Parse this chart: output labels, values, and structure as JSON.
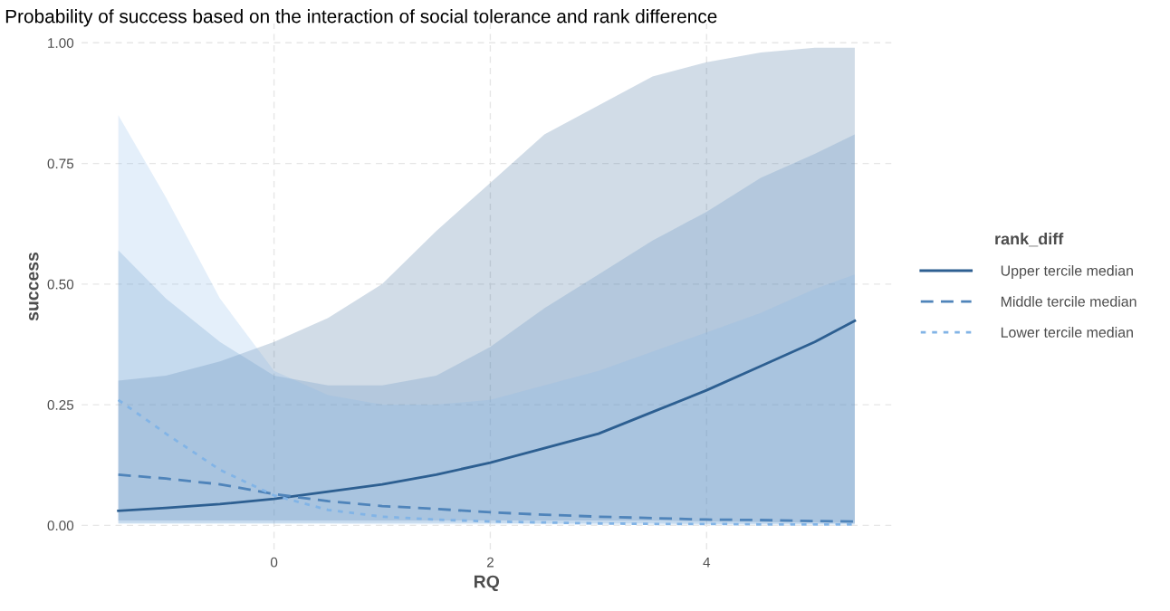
{
  "chart_data": {
    "type": "line",
    "title": "Probability of success based on the interaction of social tolerance and rank difference",
    "xlabel": "RQ",
    "ylabel": "success",
    "legend_title": "rank_diff",
    "legend": "right",
    "grid": true,
    "xlim": [
      -1.78,
      5.71
    ],
    "xticks": [
      0,
      2,
      4
    ],
    "ylim": [
      -0.05,
      1.04
    ],
    "yticks": [
      {
        "value": 0,
        "label": "0.00"
      },
      {
        "value": 0.25,
        "label": "0.25"
      },
      {
        "value": 0.5,
        "label": "0.50"
      },
      {
        "value": 0.75,
        "label": "0.75"
      },
      {
        "value": 1,
        "label": "1.00"
      }
    ],
    "x": [
      -1.44,
      -1,
      -0.5,
      0,
      0.5,
      1,
      1.5,
      2,
      2.5,
      3,
      3.5,
      4,
      4.5,
      5,
      5.37
    ],
    "series": [
      {
        "name": "Upper tercile median",
        "color": "#2d5f91",
        "line_style": "solid",
        "values": [
          0.03,
          0.036,
          0.044,
          0.055,
          0.07,
          0.085,
          0.105,
          0.13,
          0.16,
          0.19,
          0.235,
          0.28,
          0.33,
          0.38,
          0.424
        ],
        "lower": [
          0.01,
          0.01,
          0.01,
          0.01,
          0.01,
          0.01,
          0.01,
          0.01,
          0.01,
          0.01,
          0.01,
          0.008,
          0.007,
          0.006,
          0.005
        ],
        "upper": [
          0.3,
          0.31,
          0.34,
          0.38,
          0.43,
          0.5,
          0.61,
          0.71,
          0.81,
          0.87,
          0.93,
          0.96,
          0.98,
          0.99,
          0.99
        ]
      },
      {
        "name": "Middle tercile median",
        "color": "#4f84ba",
        "line_style": "dashed",
        "values": [
          0.105,
          0.097,
          0.085,
          0.065,
          0.05,
          0.04,
          0.034,
          0.027,
          0.022,
          0.018,
          0.015,
          0.012,
          0.011,
          0.009,
          0.008
        ],
        "lower": [
          0.005,
          0.005,
          0.005,
          0.005,
          0.005,
          0.005,
          0.005,
          0.005,
          0.004,
          0.004,
          0.004,
          0.003,
          0.003,
          0.003,
          0.003
        ],
        "upper": [
          0.57,
          0.47,
          0.38,
          0.31,
          0.29,
          0.29,
          0.31,
          0.37,
          0.45,
          0.52,
          0.59,
          0.65,
          0.72,
          0.77,
          0.81
        ]
      },
      {
        "name": "Lower tercile median",
        "color": "#82b4e6",
        "line_style": "dotted",
        "values": [
          0.26,
          0.19,
          0.115,
          0.062,
          0.032,
          0.018,
          0.012,
          0.008,
          0.006,
          0.004,
          0.003,
          0.003,
          0.002,
          0.002,
          0.002
        ],
        "lower": [
          0.003,
          0.003,
          0.003,
          0.003,
          0.003,
          0.002,
          0.002,
          0.002,
          0.002,
          0.001,
          0.001,
          0.001,
          0.001,
          0.001,
          0.001
        ],
        "upper": [
          0.85,
          0.68,
          0.47,
          0.32,
          0.27,
          0.25,
          0.25,
          0.26,
          0.29,
          0.32,
          0.36,
          0.4,
          0.44,
          0.49,
          0.52
        ]
      }
    ]
  }
}
